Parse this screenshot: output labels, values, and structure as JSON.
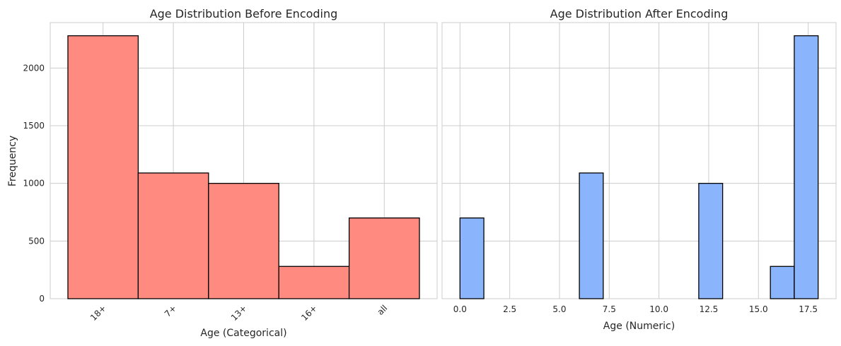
{
  "colors": {
    "left_bar": "#ff8a80",
    "right_bar": "#8ab4fc",
    "edge": "#000000",
    "grid": "#cccccc",
    "text": "#262626"
  },
  "chart_data": [
    {
      "type": "bar",
      "title": "Age Distribution Before Encoding",
      "xlabel": "Age (Categorical)",
      "ylabel": "Frequency",
      "categories": [
        "18+",
        "7+",
        "13+",
        "16+",
        "all"
      ],
      "values": [
        2280,
        1090,
        1000,
        280,
        700
      ],
      "ylim": [
        0,
        2394
      ],
      "yticks": [
        "0",
        "500",
        "1000",
        "1500",
        "2000"
      ],
      "ytick_values": [
        0,
        500,
        1000,
        1500,
        2000
      ],
      "grid": true,
      "xtick_rotation": -45
    },
    {
      "type": "bar",
      "title": "Age Distribution After Encoding",
      "xlabel": "Age (Numeric)",
      "ylabel": "",
      "bins": [
        {
          "x0": 0.0,
          "x1": 1.2,
          "value": 700
        },
        {
          "x0": 6.0,
          "x1": 7.2,
          "value": 1090
        },
        {
          "x0": 12.0,
          "x1": 13.2,
          "value": 1000
        },
        {
          "x0": 15.6,
          "x1": 16.8,
          "value": 280
        },
        {
          "x0": 16.8,
          "x1": 18.0,
          "value": 2280
        }
      ],
      "xlim": [
        -0.9,
        18.9
      ],
      "ylim": [
        0,
        2394
      ],
      "xticks": [
        "0.0",
        "2.5",
        "5.0",
        "7.5",
        "10.0",
        "12.5",
        "15.0",
        "17.5"
      ],
      "xtick_values": [
        0,
        2.5,
        5,
        7.5,
        10,
        12.5,
        15,
        17.5
      ],
      "ytick_values": [
        0,
        500,
        1000,
        1500,
        2000
      ],
      "grid": true
    }
  ]
}
